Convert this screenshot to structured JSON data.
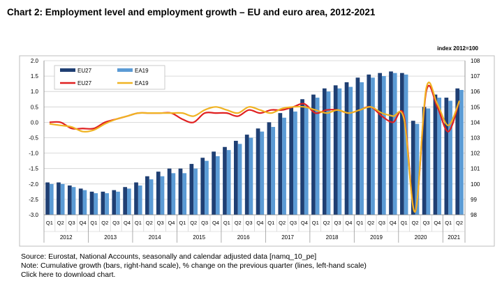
{
  "chart_data": {
    "type": "bar+line",
    "title": "Chart 2:  Employment level and employment growth – EU and euro area, 2012-2021",
    "right_axis_unit": "index 2012=100",
    "quarters": [
      "Q1",
      "Q2",
      "Q3",
      "Q4",
      "Q1",
      "Q2",
      "Q3",
      "Q4",
      "Q1",
      "Q2",
      "Q3",
      "Q4",
      "Q1",
      "Q2",
      "Q3",
      "Q4",
      "Q1",
      "Q2",
      "Q3",
      "Q4",
      "Q1",
      "Q2",
      "Q3",
      "Q4",
      "Q1",
      "Q2",
      "Q3",
      "Q4",
      "Q1",
      "Q2",
      "Q3",
      "Q4",
      "Q1",
      "Q2",
      "Q3",
      "Q4",
      "Q1",
      "Q2"
    ],
    "years": [
      {
        "label": "2012",
        "span": 4
      },
      {
        "label": "2013",
        "span": 4
      },
      {
        "label": "2014",
        "span": 4
      },
      {
        "label": "2015",
        "span": 4
      },
      {
        "label": "2016",
        "span": 4
      },
      {
        "label": "2017",
        "span": 4
      },
      {
        "label": "2018",
        "span": 4
      },
      {
        "label": "2019",
        "span": 4
      },
      {
        "label": "2020",
        "span": 4
      },
      {
        "label": "2021",
        "span": 2
      }
    ],
    "left_axis": {
      "min": -3.0,
      "max": 2.0,
      "step": 0.5,
      "ticks": [
        "-3.0",
        "-2.5",
        "-2.0",
        "-1.5",
        "-1.0",
        "-0.5",
        "0.0",
        "0.5",
        "1.0",
        "1.5",
        "2.0"
      ]
    },
    "right_axis": {
      "min": 98,
      "max": 108,
      "step": 1,
      "ticks": [
        "98",
        "99",
        "100",
        "101",
        "102",
        "103",
        "104",
        "105",
        "106",
        "107",
        "108"
      ]
    },
    "grid": "horizontal",
    "legend_position": "top-left",
    "bar_series": [
      {
        "name": "EU27",
        "axis": "right",
        "color": "#1f3f73",
        "values": [
          100.1,
          100.1,
          99.9,
          99.7,
          99.5,
          99.5,
          99.6,
          99.8,
          100.1,
          100.5,
          100.8,
          101.0,
          101.0,
          101.3,
          101.7,
          102.1,
          102.4,
          102.8,
          103.2,
          103.6,
          104.0,
          104.6,
          105.0,
          105.5,
          105.8,
          106.2,
          106.4,
          106.6,
          106.9,
          107.1,
          107.2,
          107.3,
          107.2,
          104.1,
          105.0,
          105.8,
          105.6,
          106.2
        ]
      },
      {
        "name": "EA19",
        "axis": "right",
        "color": "#5b9bd5",
        "values": [
          100.0,
          100.0,
          99.8,
          99.6,
          99.4,
          99.4,
          99.5,
          99.7,
          99.9,
          100.3,
          100.5,
          100.7,
          100.7,
          101.0,
          101.5,
          101.8,
          102.2,
          102.6,
          103.0,
          103.4,
          103.7,
          104.3,
          104.7,
          105.1,
          105.6,
          106.0,
          106.2,
          106.3,
          106.6,
          106.9,
          107.0,
          107.2,
          107.1,
          103.9,
          104.9,
          105.6,
          105.4,
          106.1
        ]
      }
    ],
    "line_series": [
      {
        "name": "EU27",
        "axis": "left",
        "color": "#e02020",
        "values": [
          0.0,
          0.0,
          -0.2,
          -0.2,
          -0.2,
          0.0,
          0.1,
          0.2,
          0.3,
          0.3,
          0.3,
          0.3,
          0.1,
          0.0,
          0.3,
          0.3,
          0.3,
          0.2,
          0.4,
          0.3,
          0.4,
          0.4,
          0.5,
          0.6,
          0.3,
          0.4,
          0.4,
          0.3,
          0.4,
          0.5,
          0.2,
          0.0,
          0.2,
          -2.9,
          1.0,
          0.5,
          -0.3,
          0.7
        ]
      },
      {
        "name": "EA19",
        "axis": "left",
        "color": "#f0b323",
        "values": [
          -0.05,
          -0.1,
          -0.15,
          -0.3,
          -0.25,
          -0.05,
          0.1,
          0.2,
          0.3,
          0.3,
          0.3,
          0.3,
          0.3,
          0.2,
          0.4,
          0.5,
          0.4,
          0.3,
          0.5,
          0.4,
          0.3,
          0.45,
          0.5,
          0.5,
          0.4,
          0.3,
          0.4,
          0.3,
          0.4,
          0.5,
          0.3,
          0.2,
          0.1,
          -2.9,
          1.1,
          0.6,
          -0.1,
          0.7
        ]
      }
    ]
  },
  "notes": {
    "source": "Source: Eurostat, National Accounts, seasonally and calendar adjusted data [namq_10_pe]",
    "note": "Note: Cumulative growth (bars, right-hand scale), % change on the previous quarter (lines, left-hand scale)",
    "download": "Click here to download chart."
  }
}
